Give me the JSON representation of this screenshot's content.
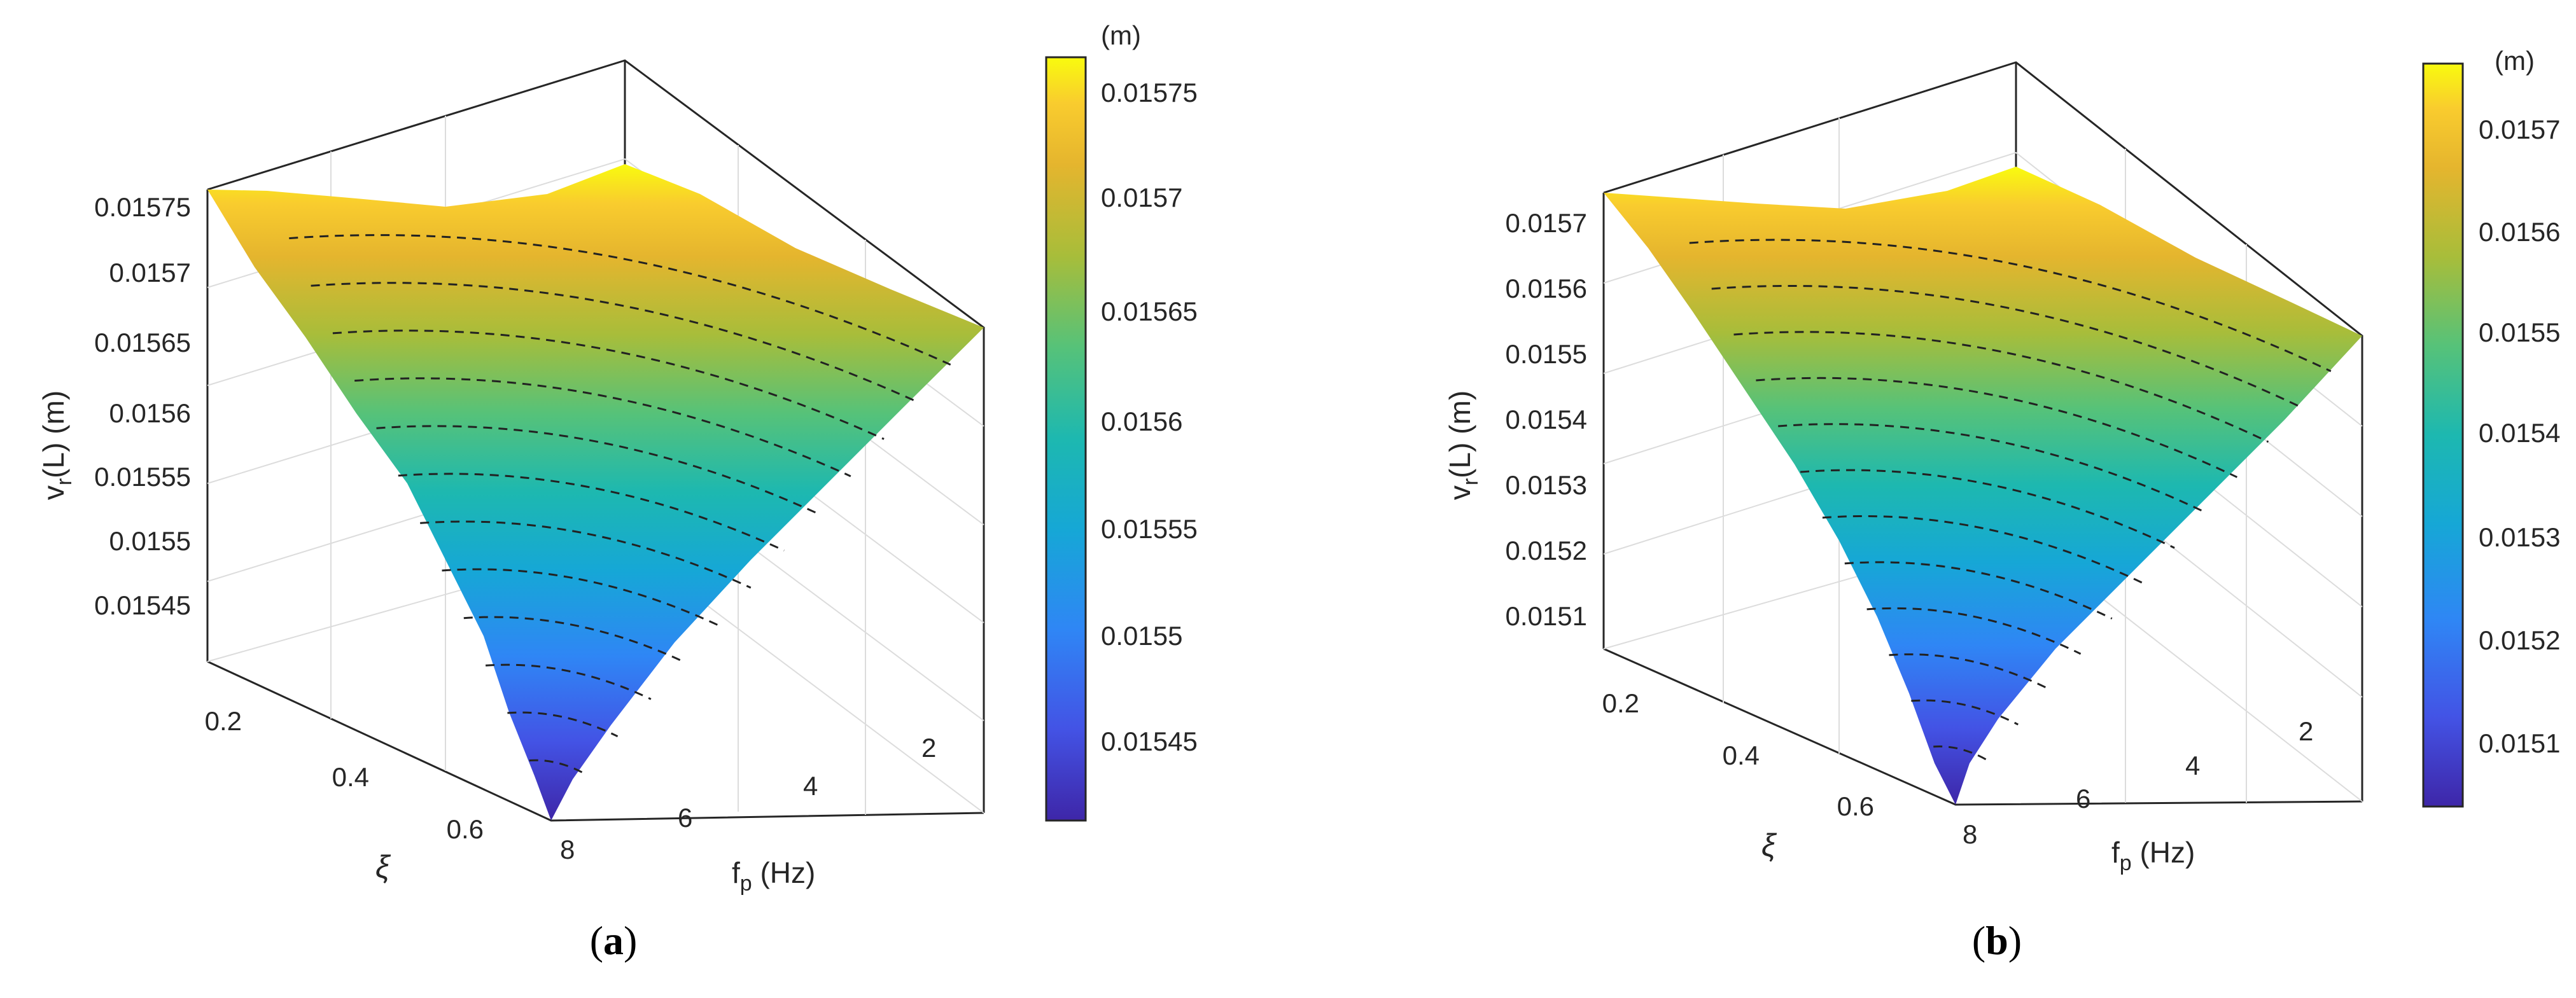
{
  "chart_data": [
    {
      "type": "surface",
      "panel_label": "(a)",
      "panel_letter": "a",
      "title": "",
      "zlabel": "v",
      "zlabel_sub": "r",
      "zlabel_rest": "(L) (m)",
      "xlabel": "f",
      "xlabel_sub": "p",
      "xlabel_rest": " (Hz)",
      "ylabel": "ξ",
      "z_ticks": [
        "0.01545",
        "0.0155",
        "0.01555",
        "0.0156",
        "0.01565",
        "0.0157",
        "0.01575"
      ],
      "x_ticks": [
        "2",
        "4",
        "6",
        "8"
      ],
      "y_ticks": [
        "0.2",
        "0.4",
        "0.6"
      ],
      "colorbar_unit": "(m)",
      "colorbar_ticks": [
        "0.01545",
        "0.0155",
        "0.01555",
        "0.0156",
        "0.01565",
        "0.0157",
        "0.01575"
      ],
      "zlim": [
        0.0154,
        0.01576
      ],
      "x_range": [
        0.5,
        8
      ],
      "y_range": [
        0.05,
        0.7
      ],
      "z_max": 0.01576,
      "z_min": 0.01542,
      "contour_count": 12
    },
    {
      "type": "surface",
      "panel_label": "(b)",
      "panel_letter": "b",
      "title": "",
      "zlabel": "v",
      "zlabel_sub": "r",
      "zlabel_rest": "(L) (m)",
      "xlabel": "f",
      "xlabel_sub": "p",
      "xlabel_rest": " (Hz)",
      "ylabel": "ξ",
      "z_ticks": [
        "0.0151",
        "0.0152",
        "0.0153",
        "0.0154",
        "0.0155",
        "0.0156",
        "0.0157"
      ],
      "x_ticks": [
        "2",
        "4",
        "6",
        "8"
      ],
      "y_ticks": [
        "0.2",
        "0.4",
        "0.6"
      ],
      "colorbar_unit": "(m)",
      "colorbar_ticks": [
        "0.0151",
        "0.0152",
        "0.0153",
        "0.0154",
        "0.0155",
        "0.0156",
        "0.0157"
      ],
      "zlim": [
        0.01503,
        0.01576
      ],
      "x_range": [
        0.5,
        8
      ],
      "y_range": [
        0.05,
        0.7
      ],
      "z_max": 0.01576,
      "z_min": 0.01505,
      "contour_count": 12
    }
  ]
}
